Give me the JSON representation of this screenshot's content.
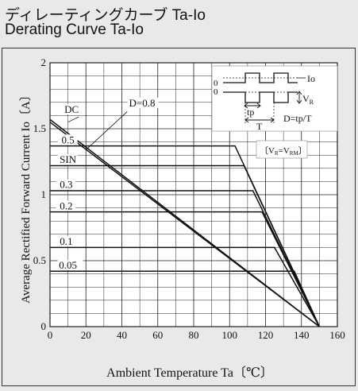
{
  "title_jp": "ディレーティングカーブ Ta-Io",
  "title_en": "Derating Curve Ta-Io",
  "chart_data": {
    "type": "line",
    "xlabel": "Ambient Temperature Ta〔℃〕",
    "ylabel": "Average Rectified Forward Current Io〔A〕",
    "xlim": [
      0,
      160
    ],
    "ylim": [
      0,
      2
    ],
    "x_ticks": [
      "0",
      "20",
      "40",
      "60",
      "80",
      "100",
      "120",
      "140",
      "160"
    ],
    "y_ticks": [
      "0",
      "0.5",
      "1",
      "1.5",
      "2"
    ],
    "grid": true,
    "series": [
      {
        "name": "DC",
        "x": [
          0,
          150
        ],
        "y": [
          1.57,
          0
        ]
      },
      {
        "name": "D=0.8",
        "x": [
          0,
          150
        ],
        "y": [
          1.55,
          0
        ]
      },
      {
        "name": "0.5",
        "x": [
          0,
          103,
          150
        ],
        "y": [
          1.37,
          1.37,
          0
        ]
      },
      {
        "name": "SIN",
        "x": [
          0,
          108,
          150
        ],
        "y": [
          1.22,
          1.22,
          0
        ]
      },
      {
        "name": "0.3",
        "x": [
          0,
          113,
          150
        ],
        "y": [
          1.03,
          1.03,
          0
        ]
      },
      {
        "name": "0.2",
        "x": [
          0,
          118,
          150
        ],
        "y": [
          0.87,
          0.87,
          0
        ]
      },
      {
        "name": "0.1",
        "x": [
          0,
          125,
          150
        ],
        "y": [
          0.6,
          0.6,
          0
        ]
      },
      {
        "name": "0.05",
        "x": [
          0,
          136,
          150
        ],
        "y": [
          0.42,
          0.42,
          0
        ]
      }
    ],
    "inset": {
      "label_io": "Io",
      "label_vr": "V",
      "label_vr_sub": "R",
      "label_tp": "tp",
      "label_t": "T",
      "label_d": "D=tp/T",
      "zero_label": "0",
      "condition_left": "V",
      "condition_left_sub": "R",
      "condition_eq": "=",
      "condition_right": "V",
      "condition_right_sub": "RM"
    }
  }
}
